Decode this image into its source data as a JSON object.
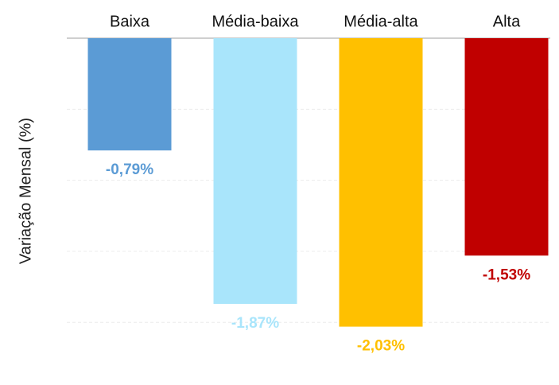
{
  "chart_data": {
    "type": "bar",
    "ylabel": "Variação Mensal (%)",
    "categories": [
      "Baixa",
      "Média-baixa",
      "Média-alta",
      "Alta"
    ],
    "values": [
      -0.79,
      -1.87,
      -2.03,
      -1.53
    ],
    "value_labels": [
      "-0,79%",
      "-1,87%",
      "-2,03%",
      "-1,53%"
    ],
    "colors": [
      "#5b9bd5",
      "#a9e5fb",
      "#ffc000",
      "#c00000"
    ],
    "ylim": [
      -2.2,
      0
    ],
    "yticks": [
      0,
      -0.5,
      -1,
      -1.5,
      -2
    ],
    "grid": true
  }
}
